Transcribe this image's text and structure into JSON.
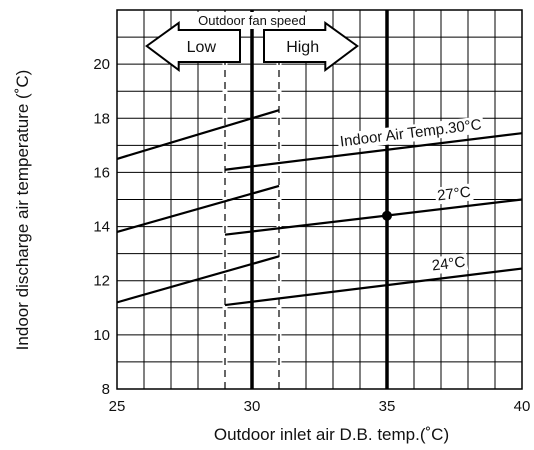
{
  "chart_data": {
    "type": "line",
    "xlabel": "Outdoor inlet air D.B. temp.(˚C)",
    "ylabel": "Indoor discharge air temperature (˚C)",
    "xlim": [
      25,
      40
    ],
    "ylim": [
      8,
      22
    ],
    "x_ticks": [
      25,
      30,
      35,
      40
    ],
    "y_ticks": [
      8,
      10,
      12,
      14,
      16,
      18,
      20
    ],
    "x_minor_step": 1,
    "y_minor_step": 1,
    "grid": true,
    "series": [
      {
        "name": "Indoor Air Temp.30°C",
        "low_segment": [
          [
            25,
            16.5
          ],
          [
            31,
            18.3
          ]
        ],
        "high_segment": [
          [
            29,
            16.1
          ],
          [
            40,
            17.45
          ]
        ]
      },
      {
        "name": "27°C",
        "low_segment": [
          [
            25,
            13.8
          ],
          [
            31,
            15.5
          ]
        ],
        "high_segment": [
          [
            29,
            13.7
          ],
          [
            40,
            15.0
          ]
        ]
      },
      {
        "name": "24°C",
        "low_segment": [
          [
            25,
            11.2
          ],
          [
            31,
            12.9
          ]
        ],
        "high_segment": [
          [
            29,
            11.1
          ],
          [
            40,
            12.45
          ]
        ]
      }
    ],
    "dashed_lines_x": [
      29,
      31
    ],
    "bold_lines_x": [
      30,
      35
    ],
    "marker_point": [
      35,
      14.4
    ],
    "annotation": {
      "title": "Outdoor fan speed",
      "low_label": "Low",
      "high_label": "High"
    }
  }
}
